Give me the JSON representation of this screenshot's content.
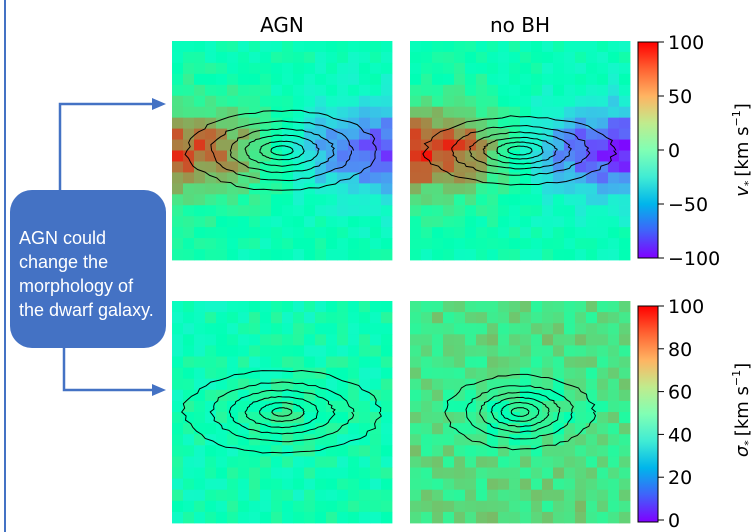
{
  "callout": {
    "text": "AGN could change the morphology of the dwarf galaxy.",
    "color": "#4472c4"
  },
  "chart_data": [
    {
      "type": "heatmap",
      "panel": "top-left",
      "title": "AGN",
      "quantity": "stellar line-of-sight velocity",
      "colormap": "rainbow",
      "vmin": -100,
      "vmax": 100,
      "pattern": "rotation gradient: red (~+100) on the left, blue/purple (~-100) on the right",
      "contours": "elongated elliptical isophotes"
    },
    {
      "type": "heatmap",
      "panel": "top-right",
      "title": "no BH",
      "quantity": "stellar line-of-sight velocity",
      "colormap": "rainbow",
      "vmin": -100,
      "vmax": 100,
      "pattern": "stronger rotation gradient: red on the left, purple on the right",
      "contours": "elongated elliptical isophotes"
    },
    {
      "type": "heatmap",
      "panel": "bottom-left",
      "title": "",
      "quantity": "stellar velocity dispersion",
      "colormap": "rainbow",
      "vmin": 0,
      "vmax": 100,
      "pattern": "mostly green-cyan (~45-60), noisy",
      "contours": "elongated elliptical isophotes"
    },
    {
      "type": "heatmap",
      "panel": "bottom-right",
      "title": "",
      "quantity": "stellar velocity dispersion",
      "colormap": "rainbow",
      "vmin": 0,
      "vmax": 100,
      "pattern": "mostly yellow-orange (~60-75), green center",
      "contours": "compact elliptical isophotes"
    }
  ],
  "colorbars": {
    "top": {
      "ticks": [
        "100",
        "50",
        "0",
        "−50",
        "−100"
      ],
      "label_main": "v",
      "label_sub": "*",
      "label_unit": "[km s",
      "label_exp": "−1",
      "label_close": "]"
    },
    "bottom": {
      "ticks": [
        "100",
        "80",
        "60",
        "40",
        "20",
        "0"
      ],
      "label_main": "σ",
      "label_sub": "*",
      "label_unit": "[km s",
      "label_exp": "−1",
      "label_close": "]"
    }
  }
}
